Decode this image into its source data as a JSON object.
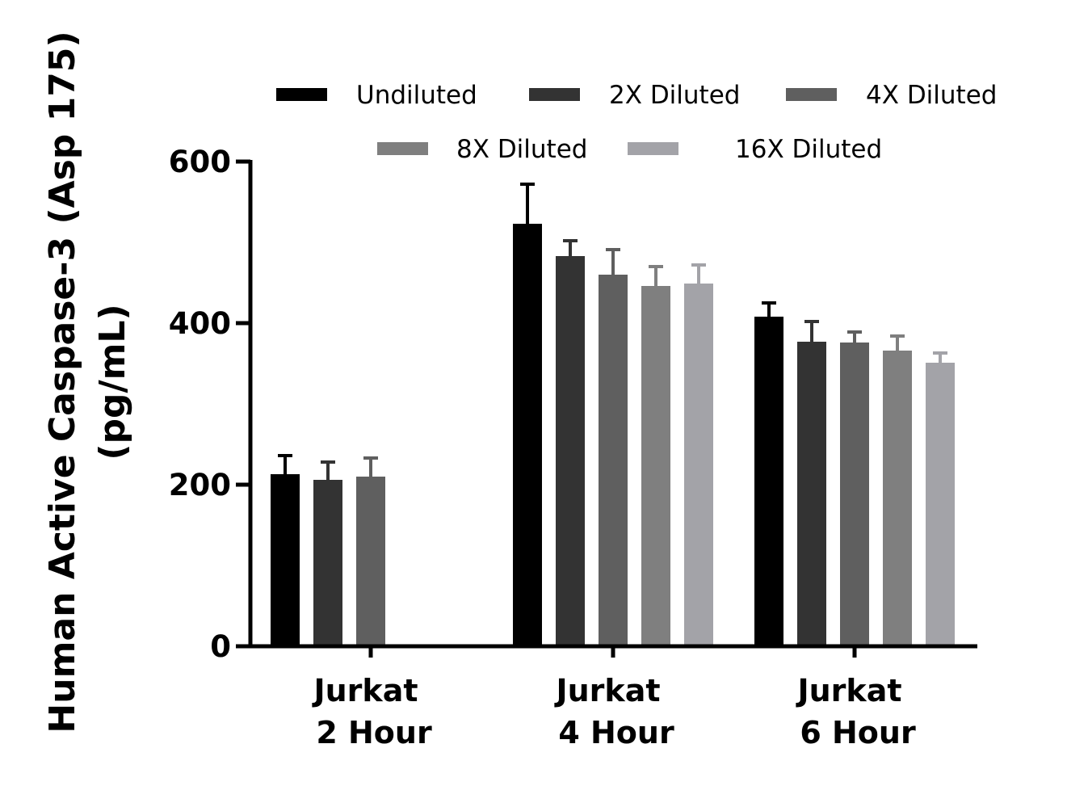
{
  "chart_data": {
    "type": "bar",
    "ylabel_lines": [
      "Human Active Caspase-3 (Asp 175)",
      "(pg/mL)"
    ],
    "categories": [
      [
        "Jurkat",
        "2 Hour"
      ],
      [
        "Jurkat",
        "4 Hour"
      ],
      [
        "Jurkat",
        "6 Hour"
      ]
    ],
    "ylim": [
      0,
      600
    ],
    "yticks": [
      0,
      200,
      400,
      600
    ],
    "ytick_labels": [
      "0",
      "200",
      "400",
      "600"
    ],
    "grid": false,
    "legend_position": "top",
    "series": [
      {
        "name": "Undiluted",
        "color": "#000000",
        "values": [
          213,
          523,
          408
        ],
        "errors": [
          23,
          49,
          17
        ]
      },
      {
        "name": "2X Diluted",
        "color": "#333333",
        "values": [
          206,
          483,
          377
        ],
        "errors": [
          22,
          19,
          25
        ]
      },
      {
        "name": "4X Diluted",
        "color": "#5f5f5f",
        "values": [
          210,
          460,
          376
        ],
        "errors": [
          23,
          31,
          13
        ]
      },
      {
        "name": "8X Diluted",
        "color": "#7f7f7f",
        "values": [
          null,
          446,
          366
        ],
        "errors": [
          null,
          24,
          18
        ]
      },
      {
        "name": "16X Diluted",
        "color": "#a3a3a8",
        "values": [
          null,
          449,
          351
        ],
        "errors": [
          null,
          23,
          12
        ]
      }
    ]
  }
}
